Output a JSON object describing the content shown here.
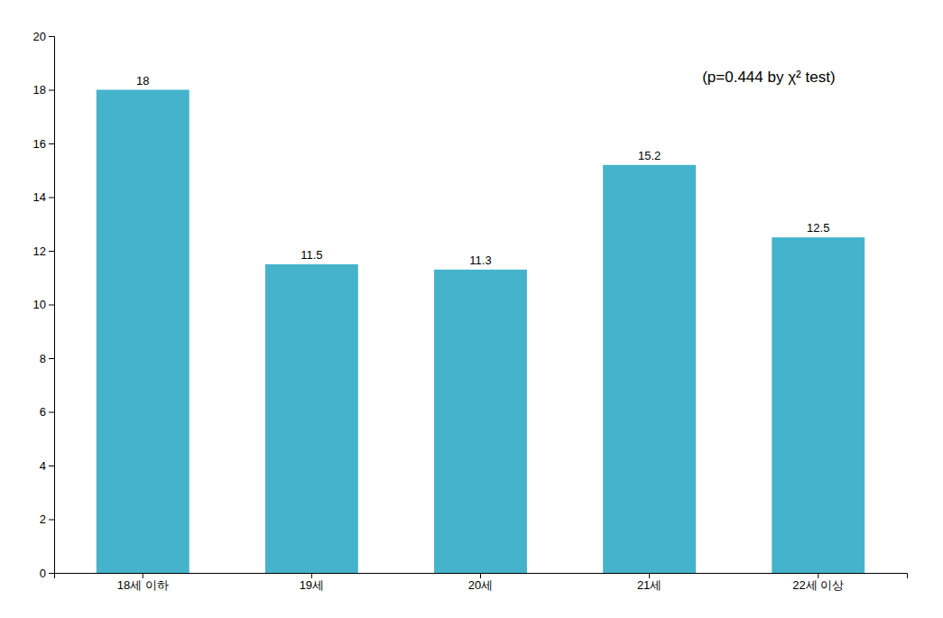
{
  "chart_data": {
    "type": "bar",
    "categories": [
      "18세 이하",
      "19세",
      "20세",
      "21세",
      "22세 이상"
    ],
    "values": [
      18.0,
      11.5,
      11.3,
      15.2,
      12.5
    ],
    "color": "#45b3cc",
    "ylim": [
      0,
      20
    ],
    "yticks": [
      0,
      2,
      4,
      6,
      8,
      10,
      12,
      14,
      16,
      18,
      20
    ],
    "annotation": "(p=0.444  by χ² test)",
    "data_labels": true,
    "grid": false
  }
}
